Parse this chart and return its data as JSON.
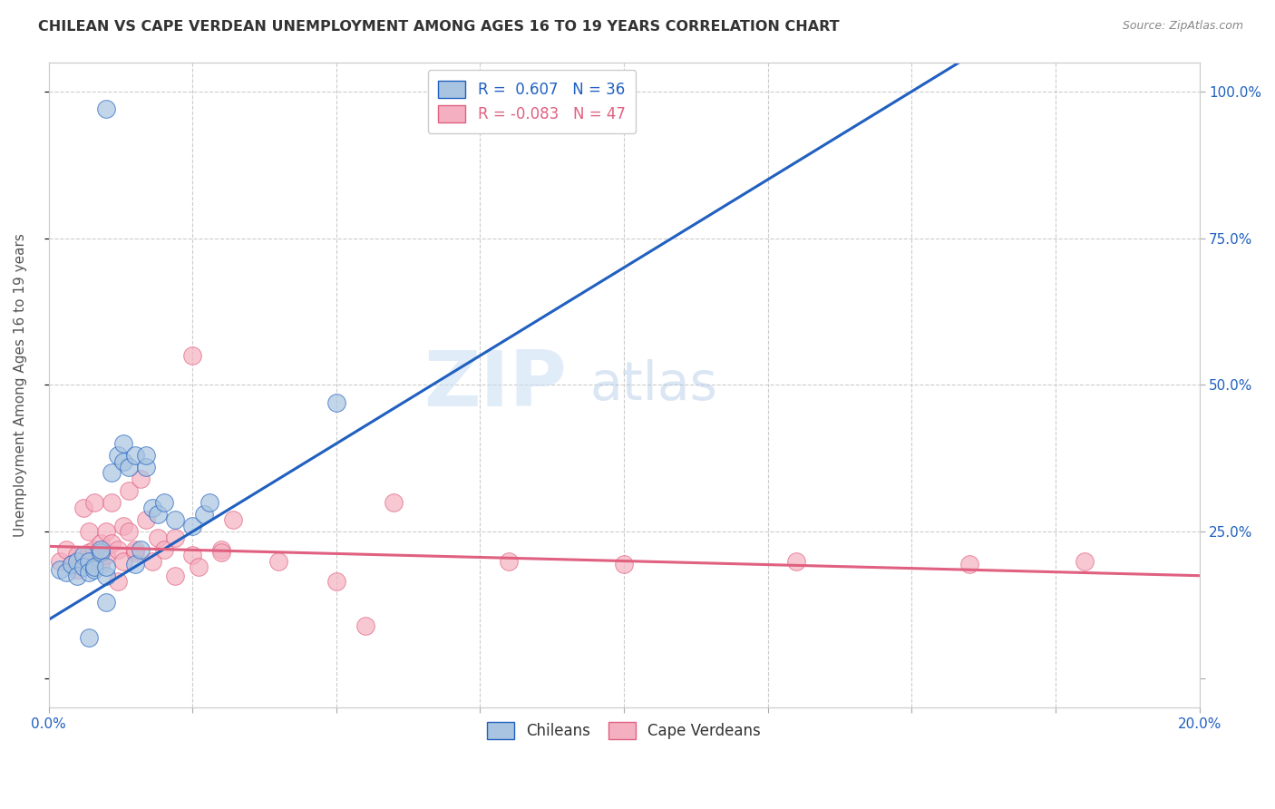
{
  "title": "CHILEAN VS CAPE VERDEAN UNEMPLOYMENT AMONG AGES 16 TO 19 YEARS CORRELATION CHART",
  "source": "Source: ZipAtlas.com",
  "ylabel": "Unemployment Among Ages 16 to 19 years",
  "yticks": [
    0.0,
    0.25,
    0.5,
    0.75,
    1.0
  ],
  "ytick_labels": [
    "",
    "25.0%",
    "50.0%",
    "75.0%",
    "100.0%"
  ],
  "xmin": 0.0,
  "xmax": 0.2,
  "ymin": -0.05,
  "ymax": 1.05,
  "chilean_R": 0.607,
  "chilean_N": 36,
  "capeverdean_R": -0.083,
  "capeverdean_N": 47,
  "chilean_color": "#a8c4e0",
  "chilean_line_color": "#2060c0",
  "capeverdean_color": "#f4b0c0",
  "capeverdean_line_color": "#e06080",
  "chilean_line_b0": 0.1,
  "chilean_line_b1": 6.0,
  "capeverdean_line_b0": 0.225,
  "capeverdean_line_b1": -0.25,
  "chilean_scatter_x": [
    0.002,
    0.003,
    0.004,
    0.005,
    0.005,
    0.006,
    0.006,
    0.007,
    0.007,
    0.008,
    0.008,
    0.009,
    0.009,
    0.01,
    0.01,
    0.011,
    0.012,
    0.013,
    0.013,
    0.014,
    0.015,
    0.015,
    0.016,
    0.017,
    0.017,
    0.018,
    0.019,
    0.02,
    0.022,
    0.025,
    0.027,
    0.05,
    0.028,
    0.01,
    0.007,
    0.01
  ],
  "chilean_scatter_y": [
    0.185,
    0.18,
    0.195,
    0.2,
    0.175,
    0.21,
    0.19,
    0.2,
    0.18,
    0.185,
    0.19,
    0.215,
    0.22,
    0.175,
    0.19,
    0.35,
    0.38,
    0.37,
    0.4,
    0.36,
    0.38,
    0.195,
    0.22,
    0.36,
    0.38,
    0.29,
    0.28,
    0.3,
    0.27,
    0.26,
    0.28,
    0.47,
    0.3,
    0.13,
    0.07,
    0.97
  ],
  "capeverdean_scatter_x": [
    0.002,
    0.003,
    0.004,
    0.005,
    0.005,
    0.006,
    0.006,
    0.007,
    0.007,
    0.008,
    0.008,
    0.009,
    0.009,
    0.01,
    0.01,
    0.011,
    0.011,
    0.012,
    0.012,
    0.013,
    0.013,
    0.014,
    0.014,
    0.015,
    0.015,
    0.016,
    0.017,
    0.018,
    0.019,
    0.02,
    0.022,
    0.022,
    0.025,
    0.025,
    0.026,
    0.03,
    0.03,
    0.032,
    0.04,
    0.05,
    0.055,
    0.06,
    0.08,
    0.1,
    0.13,
    0.16,
    0.18
  ],
  "capeverdean_scatter_y": [
    0.2,
    0.22,
    0.195,
    0.21,
    0.185,
    0.2,
    0.29,
    0.25,
    0.215,
    0.3,
    0.22,
    0.195,
    0.23,
    0.21,
    0.25,
    0.3,
    0.23,
    0.22,
    0.165,
    0.26,
    0.2,
    0.25,
    0.32,
    0.215,
    0.22,
    0.34,
    0.27,
    0.2,
    0.24,
    0.22,
    0.175,
    0.24,
    0.21,
    0.55,
    0.19,
    0.22,
    0.215,
    0.27,
    0.2,
    0.165,
    0.09,
    0.3,
    0.2,
    0.195,
    0.2,
    0.195,
    0.2
  ],
  "legend_label1": "R =  0.607   N = 36",
  "legend_label2": "R = -0.083   N = 47",
  "legend_bottom_label1": "Chileans",
  "legend_bottom_label2": "Cape Verdeans",
  "watermark_zip": "ZIP",
  "watermark_atlas": "atlas",
  "background_color": "#ffffff",
  "grid_color": "#cccccc"
}
